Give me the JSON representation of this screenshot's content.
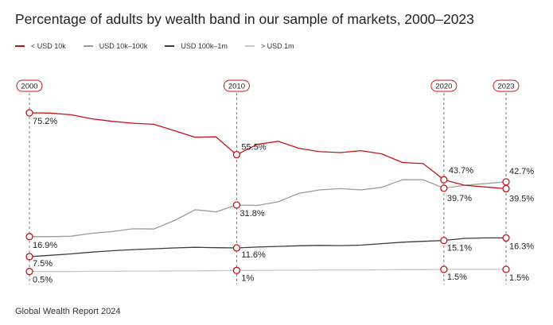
{
  "title": "Percentage of adults by wealth band in our sample of markets, 2000–2023",
  "source": "Global Wealth Report 2024",
  "legend": [
    {
      "label": "< USD 10k",
      "color": "#c5141b"
    },
    {
      "label": "USD 10k–100k",
      "color": "#9a9a9a"
    },
    {
      "label": "USD 100k–1m",
      "color": "#3c3c3c"
    },
    {
      "label": "> USD 1m",
      "color": "#c8c8c2"
    }
  ],
  "chart_data": {
    "type": "line",
    "title": "Percentage of adults by wealth band in our sample of markets, 2000–2023",
    "xlabel": "",
    "ylabel": "",
    "x": [
      2000,
      2001,
      2002,
      2003,
      2004,
      2005,
      2006,
      2007,
      2008,
      2009,
      2010,
      2011,
      2012,
      2013,
      2014,
      2015,
      2016,
      2017,
      2018,
      2019,
      2020,
      2021,
      2022,
      2023
    ],
    "ylim": [
      0,
      80
    ],
    "grid": false,
    "legend_position": "top-left",
    "highlight_years": [
      "2000",
      "2010",
      "2020",
      "2023"
    ],
    "series": [
      {
        "name": "< USD 10k",
        "color": "#c5141b",
        "values": [
          75.2,
          75.1,
          74.3,
          72.4,
          71.2,
          70.3,
          69.8,
          66.8,
          63.7,
          63.9,
          55.5,
          60.4,
          61.8,
          58.5,
          56.9,
          56.5,
          57.4,
          55.9,
          51.8,
          51.3,
          43.7,
          41.1,
          40.3,
          39.5
        ],
        "labels": {
          "0": "75.2%",
          "10": "55.5%",
          "20": "43.7%",
          "23": "39.5%"
        }
      },
      {
        "name": "USD 10k–100k",
        "color": "#9a9a9a",
        "values": [
          16.9,
          16.9,
          17.1,
          18.5,
          19.3,
          20.6,
          20.5,
          24.5,
          29.6,
          28.6,
          31.8,
          31.6,
          33.3,
          37.3,
          38.9,
          39.5,
          38.9,
          40.1,
          43.7,
          43.7,
          39.7,
          41.1,
          41.9,
          42.7
        ],
        "labels": {
          "10": "31.8%",
          "20": "39.7%",
          "23": "42.7%"
        }
      },
      {
        "name": "USD 100k–1m",
        "color": "#3c3c3c",
        "values": [
          7.5,
          8.1,
          8.8,
          9.6,
          10.3,
          10.8,
          11.2,
          11.6,
          11.9,
          11.7,
          11.6,
          12.0,
          12.3,
          12.6,
          12.8,
          12.7,
          12.9,
          13.6,
          14.3,
          14.7,
          15.1,
          16.1,
          16.3,
          16.3
        ],
        "labels": {
          "0": "7.5%",
          "10": "11.6%",
          "20": "15.1%",
          "23": "16.3%"
        }
      },
      {
        "name": "> USD 1m",
        "color": "#c8c8c2",
        "values": [
          0.5,
          0.5,
          0.5,
          0.6,
          0.6,
          0.7,
          0.7,
          0.8,
          0.8,
          0.9,
          1.0,
          1.0,
          1.1,
          1.1,
          1.2,
          1.2,
          1.2,
          1.3,
          1.4,
          1.4,
          1.5,
          1.5,
          1.5,
          1.5
        ],
        "labels": {
          "0": "0.5%",
          "10": "1%",
          "20": "1.5%",
          "23": "1.5%"
        }
      }
    ],
    "extra_labels": [
      {
        "text": "16.9%",
        "series": "USD 10k–100k",
        "index": 0
      }
    ]
  }
}
